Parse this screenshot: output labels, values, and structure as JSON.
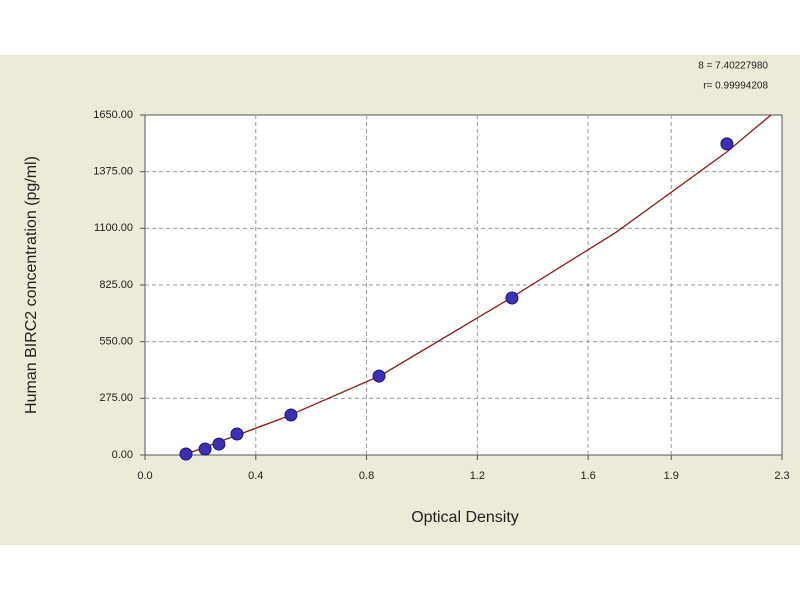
{
  "chart_data": {
    "type": "scatter",
    "x_label": "Optical Density",
    "y_label": "Human BIRC2 concentration (pg/ml)",
    "annotations": [
      "8 = 7.40227980",
      "r= 0.99994208"
    ],
    "xlim": [
      0,
      2.3
    ],
    "ylim": [
      0,
      1650
    ],
    "xticks": [
      {
        "value": 0,
        "label": "0.0"
      },
      0.4,
      0.8,
      1.2,
      1.6,
      1.9,
      2.3
    ],
    "yticks": [
      {
        "value": 0,
        "label": "0.00"
      },
      {
        "value": 275,
        "label": "275.00"
      },
      {
        "value": 550,
        "label": "550.00"
      },
      {
        "value": 825,
        "label": "825.00"
      },
      {
        "value": 1100,
        "label": "1100.00"
      },
      {
        "value": 1375,
        "label": "1375.00"
      },
      {
        "value": 1650,
        "label": "1650.00"
      }
    ],
    "grid": true,
    "points": {
      "color": "#3b2fb3",
      "x": [
        0.148,
        0.217,
        0.267,
        0.332,
        0.527,
        0.845,
        1.325,
        2.101
      ],
      "y": [
        5,
        29,
        53,
        102,
        194,
        383,
        762,
        1510
      ]
    },
    "fit": {
      "color": "#8b1a1a",
      "x": [
        0.15,
        0.3,
        0.5,
        0.85,
        1.3,
        1.7,
        2.1,
        2.26
      ],
      "y": [
        5,
        80,
        180,
        385,
        745,
        1080,
        1470,
        1650
      ]
    }
  }
}
